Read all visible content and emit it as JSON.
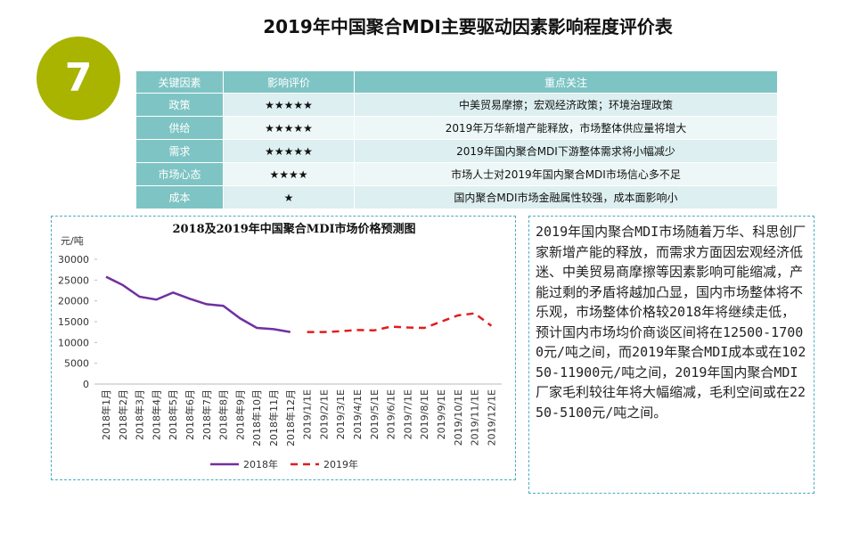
{
  "title": "2019年中国聚合MDI主要驱动因素影响程度评价表",
  "badge": "7",
  "table": {
    "header": [
      "关键因素",
      "影响评价",
      "重点关注"
    ],
    "rows": [
      [
        "政策",
        "★★★★★",
        "中美贸易摩擦；宏观经济政策；环境治理政策"
      ],
      [
        "供给",
        "★★★★★",
        "2019年万华新增产能释放，市场整体供应量将增大"
      ],
      [
        "需求",
        "★★★★★",
        "2019年国内聚合MDI下游整体需求将小幅减少"
      ],
      [
        "市场心态",
        "★★★★",
        "市场人士对2019年国内聚合MDI市场信心多不足"
      ],
      [
        "成本",
        "★",
        "国内聚合MDI市场金融属性较强，成本面影响小"
      ]
    ]
  },
  "chart_data": {
    "type": "line",
    "title": "2018及2019年中国聚合MDI市场价格预测图",
    "y_label": "元/吨",
    "categories": [
      "2018年1月",
      "2018年2月",
      "2018年3月",
      "2018年4月",
      "2018年5月",
      "2018年6月",
      "2018年7月",
      "2018年8月",
      "2018年9月",
      "2018年10月",
      "2018年11月",
      "2018年12月",
      "2019/1/1E",
      "2019/2/1E",
      "2019/3/1E",
      "2019/4/1E",
      "2019/5/1E",
      "2019/6/1E",
      "2019/7/1E",
      "2019/8/1E",
      "2019/9/1E",
      "2019/10/1E",
      "2019/11/1E",
      "2019/12/1E"
    ],
    "series": [
      {
        "name": "2018年",
        "color": "#7030a0",
        "dashed": false,
        "values": [
          25800,
          23800,
          21000,
          20300,
          22000,
          20500,
          19200,
          18800,
          15800,
          13500,
          13200,
          12500,
          null,
          null,
          null,
          null,
          null,
          null,
          null,
          null,
          null,
          null,
          null,
          null
        ]
      },
      {
        "name": "2019年",
        "color": "#e31b1b",
        "dashed": true,
        "values": [
          null,
          null,
          null,
          null,
          null,
          null,
          null,
          null,
          null,
          null,
          null,
          null,
          12500,
          12500,
          12700,
          13000,
          12900,
          13800,
          13600,
          13500,
          15000,
          16500,
          17000,
          14000
        ]
      }
    ],
    "ylim": [
      0,
      30000
    ],
    "yticks": [
      0,
      5000,
      10000,
      15000,
      20000,
      25000,
      30000
    ],
    "grid": false,
    "legend": "bottom"
  },
  "text": "2019年国内聚合MDI市场随着万华、科思创厂家新增产能的释放，而需求方面因宏观经济低迷、中美贸易商摩擦等因素影响可能缩减，产能过剩的矛盾将越加凸显，国内市场整体将不乐观，市场整体价格较2018年将继续走低，预计国内市场均价商谈区间将在12500-17000元/吨之间，而2019年聚合MDI成本或在10250-11900元/吨之间，2019年国内聚合MDI厂家毛利较往年将大幅缩减，毛利空间或在2250-5100元/吨之间。"
}
